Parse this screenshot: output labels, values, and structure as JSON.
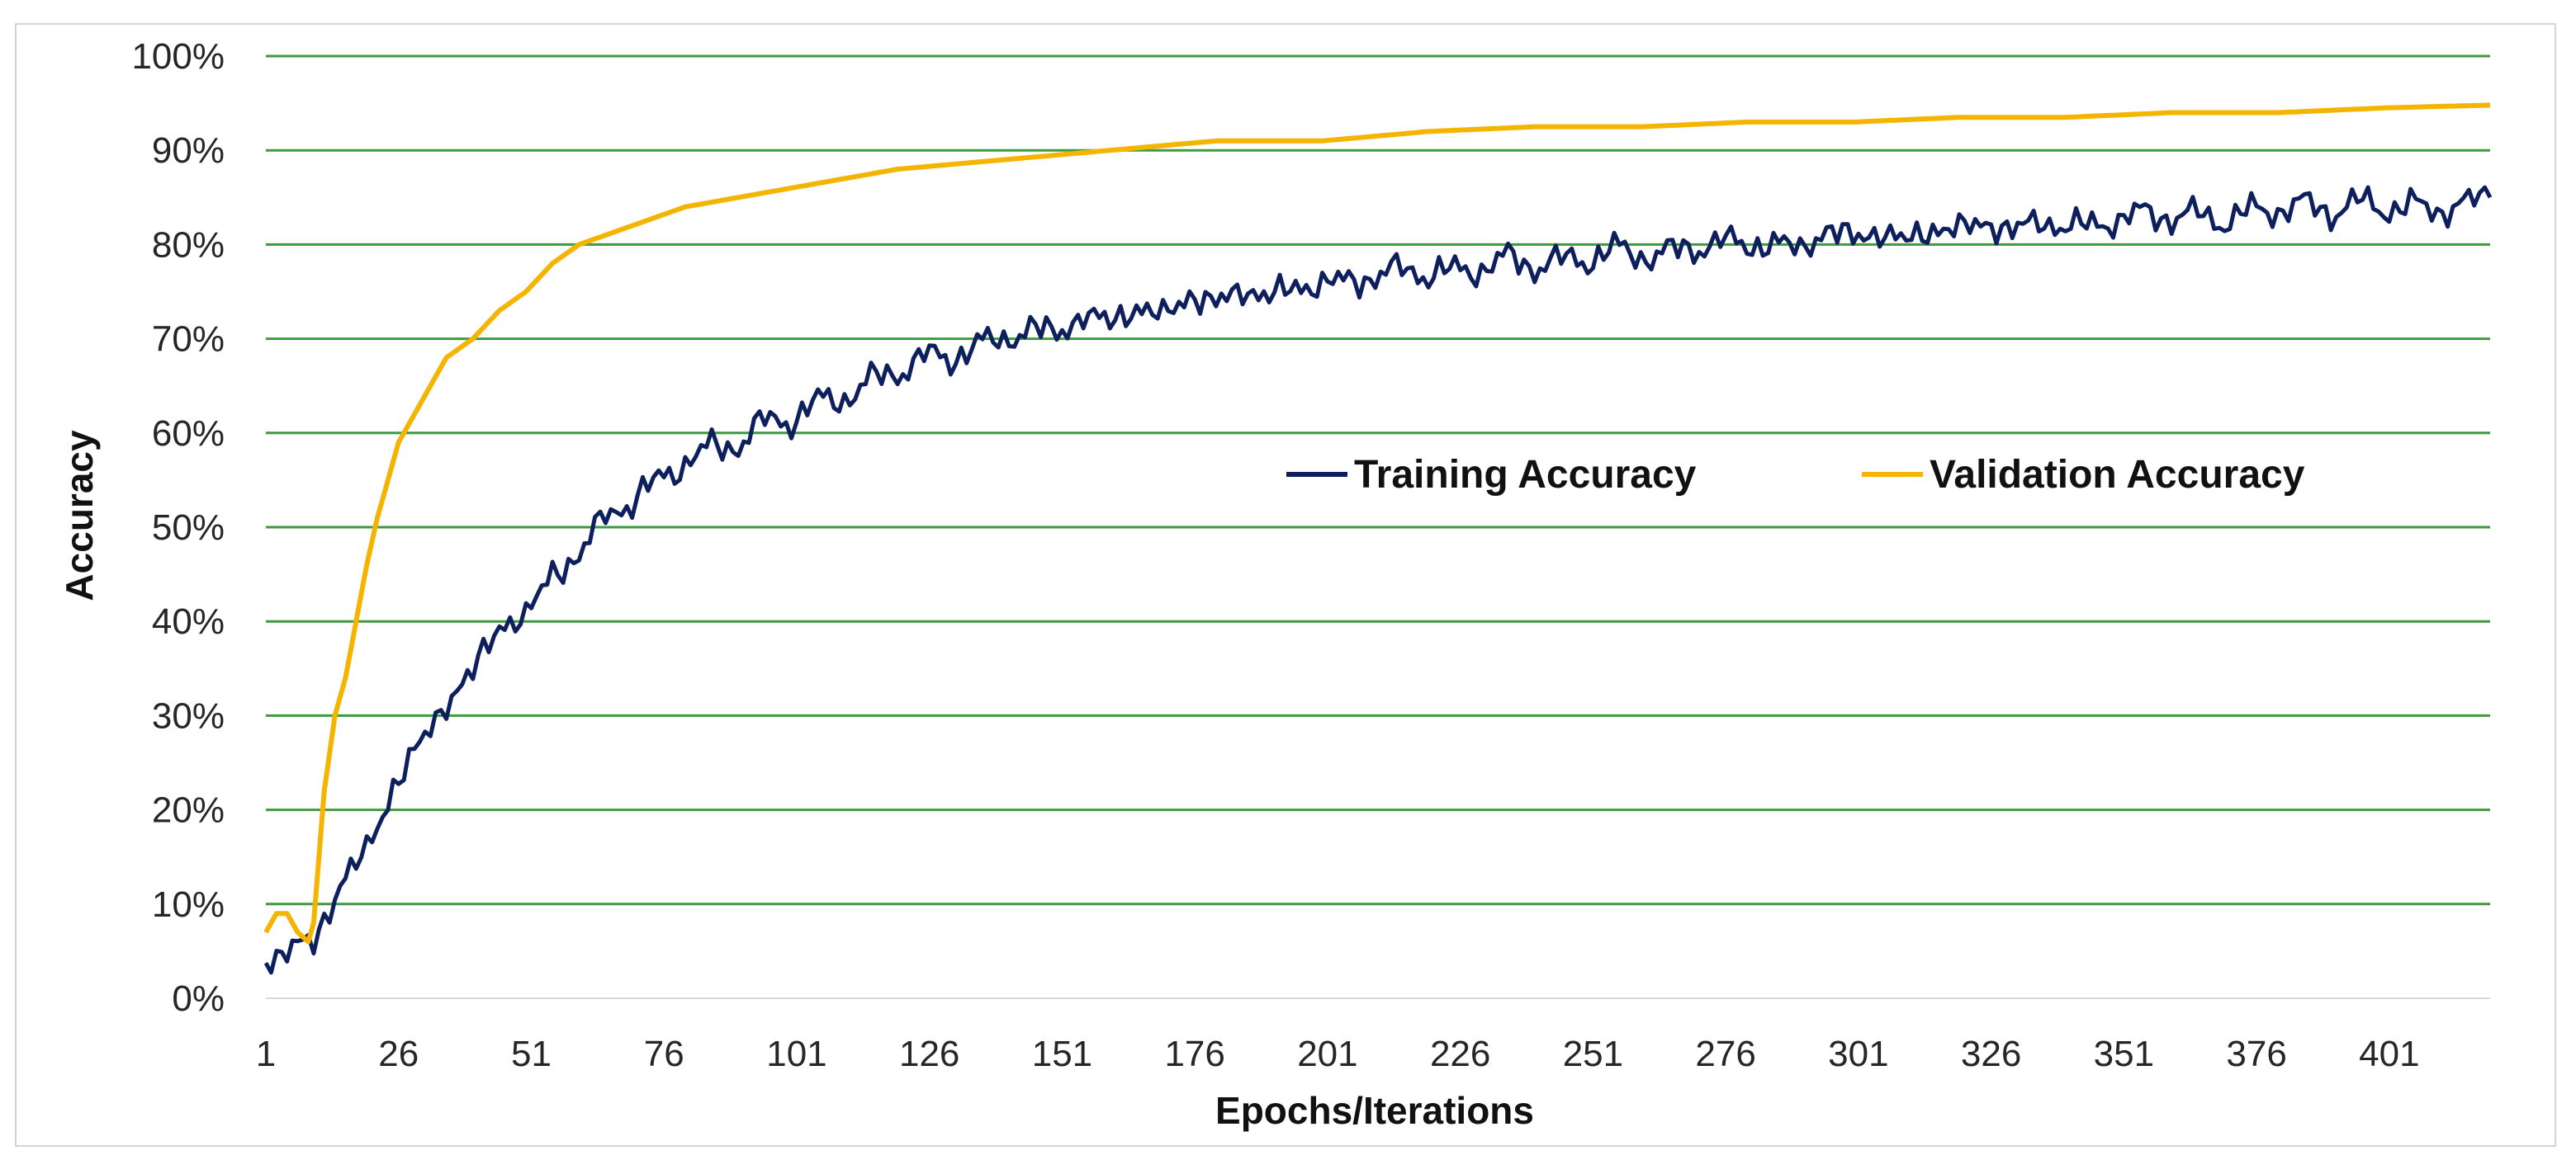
{
  "chart_data": {
    "type": "line",
    "title": "",
    "xlabel": "Epochs/Iterations",
    "ylabel": "Accuracy",
    "x_tick_labels": [
      "1",
      "26",
      "51",
      "76",
      "101",
      "126",
      "151",
      "176",
      "201",
      "226",
      "251",
      "276",
      "301",
      "326",
      "351",
      "376",
      "401"
    ],
    "y_tick_labels": [
      "0%",
      "10%",
      "20%",
      "30%",
      "40%",
      "50%",
      "60%",
      "70%",
      "80%",
      "90%",
      "100%"
    ],
    "xlim": [
      1,
      420
    ],
    "ylim": [
      0,
      100
    ],
    "grid": "horizontal",
    "legend": {
      "placement": "inside-right",
      "entries": [
        "Training Accuracy",
        "Validation Accuracy"
      ]
    },
    "colors": {
      "training": "#0d1f5c",
      "validation": "#f5b400",
      "grid": "#3e9a3e"
    },
    "series": [
      {
        "name": "Training Accuracy",
        "x": [
          1,
          5,
          10,
          15,
          20,
          25,
          30,
          35,
          40,
          45,
          50,
          55,
          60,
          65,
          70,
          75,
          80,
          85,
          90,
          95,
          100,
          105,
          110,
          115,
          120,
          125,
          130,
          135,
          140,
          145,
          150,
          155,
          160,
          165,
          170,
          175,
          180,
          185,
          190,
          195,
          200,
          205,
          210,
          215,
          220,
          225,
          230,
          235,
          240,
          245,
          250,
          255,
          260,
          265,
          270,
          275,
          280,
          285,
          290,
          295,
          300,
          305,
          310,
          315,
          320,
          325,
          330,
          335,
          340,
          345,
          350,
          355,
          360,
          365,
          370,
          375,
          380,
          385,
          390,
          395,
          400,
          405,
          410,
          415,
          420
        ],
        "values": [
          4,
          5,
          6,
          12,
          16,
          22,
          27,
          31,
          35,
          39,
          41,
          45,
          47,
          51,
          53,
          55,
          57,
          58,
          59,
          61,
          62,
          63,
          64,
          65,
          67,
          68,
          68,
          69,
          70,
          71,
          71,
          72,
          72,
          73,
          73,
          74,
          74,
          75,
          75,
          75,
          76,
          76,
          77,
          77,
          77,
          77,
          78,
          78,
          78,
          78,
          79,
          79,
          79,
          79,
          80,
          80,
          80,
          80,
          80,
          81,
          81,
          81,
          81,
          81,
          82,
          82,
          82,
          82,
          82,
          82,
          83,
          83,
          83,
          83,
          83,
          83,
          84,
          84,
          84,
          84,
          84,
          84,
          84,
          84,
          85
        ],
        "noise": [
          0,
          1,
          -1,
          1,
          -2,
          2,
          -1,
          2,
          -2,
          3,
          -3,
          2,
          -2,
          3,
          -3,
          2,
          -2,
          3,
          -2,
          2,
          -3,
          2,
          -2,
          3,
          -3,
          2,
          -2,
          3,
          -2,
          2,
          -3,
          3,
          -2,
          2,
          -3,
          3,
          -2,
          2,
          -3,
          3,
          -2,
          2,
          -3,
          3,
          -2,
          2,
          -3,
          3,
          -2,
          2,
          -3,
          3,
          -2,
          2,
          -3,
          3,
          -2,
          2,
          -3,
          3,
          -2,
          2,
          -3,
          3,
          -2,
          2,
          -3,
          3,
          -2,
          2,
          -3,
          3,
          -2,
          2,
          -3,
          3,
          -2,
          2,
          -3,
          3,
          -2,
          2,
          -3,
          3,
          -2
        ]
      },
      {
        "name": "Validation Accuracy",
        "x": [
          1,
          3,
          5,
          7,
          9,
          10,
          11,
          12,
          14,
          16,
          18,
          20,
          22,
          24,
          26,
          28,
          30,
          35,
          40,
          45,
          50,
          55,
          60,
          65,
          70,
          75,
          80,
          90,
          100,
          110,
          120,
          130,
          140,
          150,
          160,
          170,
          180,
          190,
          200,
          220,
          240,
          260,
          280,
          300,
          320,
          340,
          360,
          380,
          400,
          420
        ],
        "values": [
          7,
          9,
          9,
          7,
          6,
          8,
          15,
          22,
          30,
          34,
          40,
          46,
          51,
          55,
          59,
          61,
          63,
          68,
          70,
          73,
          75,
          78,
          80,
          81,
          82,
          83,
          84,
          85,
          86,
          87,
          88,
          88.5,
          89,
          89.5,
          90,
          90.5,
          91,
          91,
          91,
          92,
          92.5,
          92.5,
          93,
          93,
          93.5,
          93.5,
          94,
          94,
          94.5,
          94.8
        ]
      }
    ]
  }
}
